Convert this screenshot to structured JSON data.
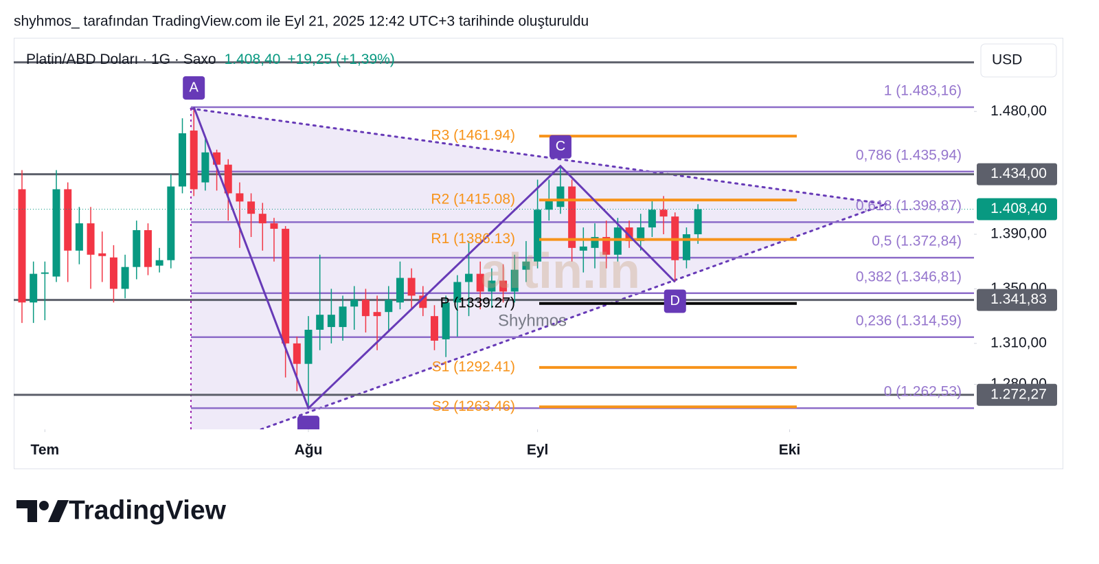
{
  "header": "shyhmos_ tarafından TradingView.com ile Eyl 21, 2025 12:42 UTC+3 tarihinde oluşturuldu",
  "chart_data": {
    "type": "candlestick",
    "title": "Platin/ABD Doları · 1G · Saxo",
    "last_price": {
      "value": 1408.4,
      "label": "1.408,40"
    },
    "change": "+19,25 (+1,39%)",
    "currency": "USD",
    "up_color": "#089981",
    "down_color": "#f23645",
    "open": [
      1423,
      1340,
      1361,
      1359,
      1423,
      1378,
      1398,
      1376,
      1373,
      1350,
      1366,
      1393,
      1367,
      1371,
      1425,
      1466,
      1428,
      1450,
      1441,
      1420,
      1414,
      1405,
      1398,
      1394,
      1310,
      1295,
      1320,
      1322,
      1322,
      1337,
      1342,
      1333,
      1333,
      1340,
      1358,
      1345,
      1330,
      1313,
      1340,
      1355,
      1361,
      1348,
      1356,
      1348,
      1364,
      1370,
      1408,
      1410,
      1425,
      1378,
      1380,
      1388,
      1375,
      1395,
      1385,
      1395,
      1408,
      1403,
      1371,
      1390
    ],
    "high": [
      1437,
      1370,
      1370,
      1437,
      1428,
      1410,
      1410,
      1392,
      1382,
      1375,
      1400,
      1398,
      1380,
      1434,
      1475,
      1483.16,
      1460,
      1452,
      1445,
      1428,
      1420,
      1413,
      1402,
      1396,
      1315,
      1330,
      1375,
      1350,
      1345,
      1352,
      1350,
      1345,
      1352,
      1370,
      1365,
      1352,
      1338,
      1345,
      1360,
      1385,
      1370,
      1365,
      1368,
      1375,
      1385,
      1430,
      1430,
      1440,
      1430,
      1395,
      1398,
      1400,
      1402,
      1400,
      1405,
      1415,
      1418,
      1406,
      1395,
      1412
    ],
    "low": [
      1325,
      1325,
      1327,
      1355,
      1355,
      1368,
      1350,
      1355,
      1340,
      1343,
      1357,
      1360,
      1362,
      1365,
      1420,
      1418,
      1422,
      1422,
      1400,
      1380,
      1388,
      1378,
      1370,
      1285,
      1275,
      1262.53,
      1305,
      1310,
      1312,
      1320,
      1318,
      1305,
      1318,
      1335,
      1335,
      1330,
      1305,
      1300,
      1315,
      1330,
      1335,
      1336,
      1340,
      1340,
      1355,
      1365,
      1400,
      1405,
      1370,
      1362,
      1365,
      1365,
      1370,
      1380,
      1378,
      1388,
      1390,
      1355,
      1365,
      1383
    ],
    "close": [
      1340,
      1361,
      1362,
      1423,
      1378,
      1398,
      1375,
      1374,
      1350,
      1366,
      1393,
      1366,
      1371,
      1425,
      1464,
      1423,
      1450,
      1441,
      1420,
      1414,
      1405,
      1398,
      1394,
      1310,
      1295,
      1320,
      1331,
      1331,
      1337,
      1342,
      1330,
      1330,
      1342,
      1358,
      1345,
      1336,
      1312,
      1340,
      1355,
      1361,
      1348,
      1356,
      1348,
      1364,
      1370,
      1408,
      1415,
      1425,
      1380,
      1381,
      1388,
      1375,
      1395,
      1385,
      1395,
      1408,
      1403,
      1371,
      1390,
      1408.4
    ],
    "ylim": [
      1247,
      1534
    ],
    "yticks": [
      {
        "value": 1280,
        "label": "1.280,00"
      },
      {
        "value": 1310,
        "label": "1.310,00"
      },
      {
        "value": 1350,
        "label": "1.350,00"
      },
      {
        "value": 1390,
        "label": "1.390,00"
      },
      {
        "value": 1480,
        "label": "1.480,00"
      }
    ],
    "xticks": [
      {
        "value": 2,
        "label": "Tem"
      },
      {
        "value": 25,
        "label": "Ağu"
      },
      {
        "value": 45,
        "label": "Eyl"
      },
      {
        "value": 67,
        "label": "Eki"
      }
    ],
    "hlines": [
      {
        "value": 1516
      },
      {
        "value": 1434,
        "label": "1.434,00"
      },
      {
        "value": 1341.83,
        "label": "1.341,83"
      },
      {
        "value": 1272.27,
        "label": "1.272,27"
      }
    ],
    "fib_levels": [
      {
        "value": 1483.16,
        "label": "1 (1.483,16)"
      },
      {
        "value": 1435.94,
        "label": "0,786 (1.435,94)"
      },
      {
        "value": 1398.87,
        "label": "0,618 (1.398,87)"
      },
      {
        "value": 1372.84,
        "label": "0,5 (1.372,84)"
      },
      {
        "value": 1346.81,
        "label": "0,382 (1.346,81)"
      },
      {
        "value": 1314.59,
        "label": "0,236 (1.314,59)"
      },
      {
        "value": 1262.53,
        "label": "0 (1.262,53)"
      }
    ],
    "pivots": [
      {
        "value": 1461.94,
        "label": "R3 (1461.94)",
        "color": "#f7931a"
      },
      {
        "value": 1415.08,
        "label": "R2 (1415.08)",
        "color": "#f7931a"
      },
      {
        "value": 1386.13,
        "label": "R1 (1386.13)",
        "color": "#f7931a"
      },
      {
        "value": 1339.27,
        "label": "P (1339.27)",
        "color": "#000000"
      },
      {
        "value": 1292.41,
        "label": "S1 (1292.41)",
        "color": "#f7931a"
      },
      {
        "value": 1263.46,
        "label": "S2 (1263.46)",
        "color": "#f7931a"
      }
    ],
    "pattern": [
      {
        "label": "A",
        "index": 15,
        "value": 1483.16
      },
      {
        "index": 25,
        "value": 1262.53
      },
      {
        "label": "C",
        "index": 47,
        "value": 1440
      },
      {
        "label": "D",
        "index": 57,
        "value": 1355
      }
    ],
    "watermark": "altin.in",
    "author": "Shyhmos"
  },
  "footer": "TradingView"
}
